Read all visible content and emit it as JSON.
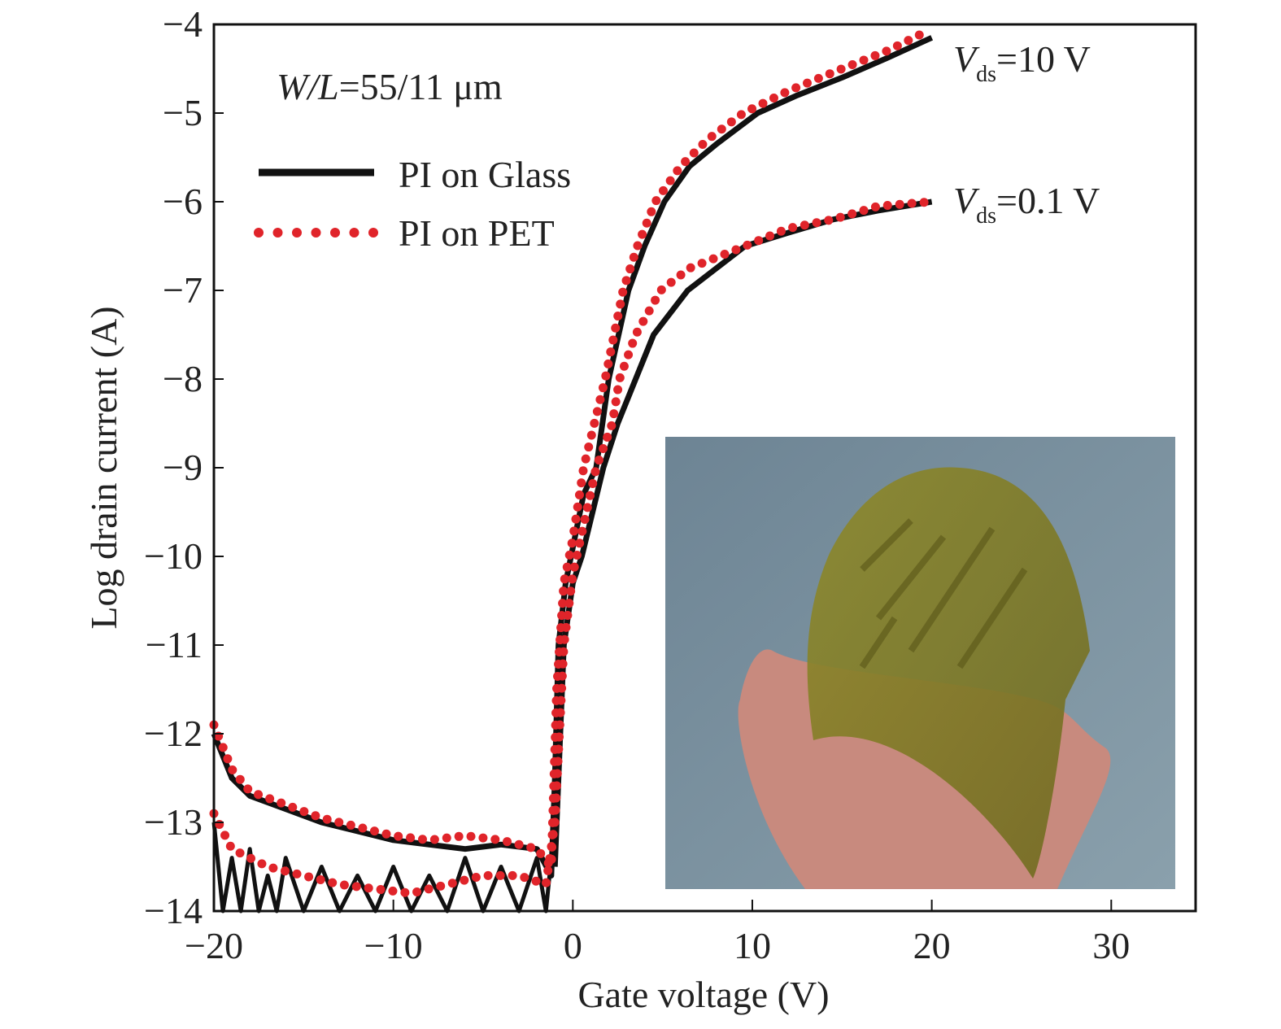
{
  "chart_data": {
    "type": "line",
    "xlabel": "Gate voltage (V)",
    "ylabel": "Log drain current (A)",
    "xlim": [
      -20,
      34.7
    ],
    "ylim": [
      -14,
      -4
    ],
    "xticks": [
      -20,
      -10,
      0,
      10,
      20,
      30
    ],
    "xtick_labels": [
      "−20",
      "−10",
      "0",
      "10",
      "20",
      "30"
    ],
    "yticks": [
      -4,
      -5,
      -6,
      -7,
      -8,
      -9,
      -10,
      -11,
      -12,
      -13,
      -14
    ],
    "ytick_labels": [
      "−4",
      "−5",
      "−6",
      "−7",
      "−8",
      "−9",
      "−10",
      "−11",
      "−12",
      "−13",
      "−14"
    ],
    "annotation_wl": {
      "italic": "W/L",
      "rest": "=55/11 μm"
    },
    "annotation_vds10": {
      "v": "V",
      "sub": "ds",
      "rest": "=10 V"
    },
    "annotation_vds01": {
      "v": "V",
      "sub": "ds",
      "rest": "=0.1 V"
    },
    "legend": {
      "placement": "top-left",
      "entries": [
        {
          "label": "PI on Glass",
          "color": "#111111",
          "style": "solid"
        },
        {
          "label": "PI on PET",
          "color": "#e0242a",
          "style": "dotted"
        }
      ]
    },
    "series": [
      {
        "name": "PI on Glass, Vds=10 V",
        "style": "solid",
        "color": "#111111",
        "points": [
          [
            -20,
            -12
          ],
          [
            -19,
            -12.5
          ],
          [
            -18,
            -12.7
          ],
          [
            -16,
            -12.85
          ],
          [
            -14,
            -13
          ],
          [
            -12,
            -13.1
          ],
          [
            -10,
            -13.2
          ],
          [
            -8,
            -13.25
          ],
          [
            -6,
            -13.3
          ],
          [
            -4,
            -13.25
          ],
          [
            -2,
            -13.3
          ],
          [
            -1.2,
            -13.6
          ],
          [
            -1,
            -12.5
          ],
          [
            -0.8,
            -11
          ],
          [
            -0.4,
            -10.3
          ],
          [
            0,
            -9.9
          ],
          [
            0.6,
            -9.3
          ],
          [
            1.3,
            -9
          ],
          [
            2,
            -8
          ],
          [
            3.1,
            -7
          ],
          [
            4,
            -6.5
          ],
          [
            5.1,
            -6
          ],
          [
            6.5,
            -5.6
          ],
          [
            8,
            -5.35
          ],
          [
            10.3,
            -5
          ],
          [
            12.5,
            -4.8
          ],
          [
            15,
            -4.6
          ],
          [
            17.5,
            -4.38
          ],
          [
            20,
            -4.15
          ]
        ]
      },
      {
        "name": "PI on Glass, Vds=0.1 V",
        "style": "solid",
        "color": "#111111",
        "points": [
          [
            -1,
            -13.5
          ],
          [
            -0.5,
            -11
          ],
          [
            0,
            -10.3
          ],
          [
            0.5,
            -10
          ],
          [
            1.7,
            -9
          ],
          [
            2.5,
            -8.5
          ],
          [
            3.5,
            -8
          ],
          [
            4.5,
            -7.5
          ],
          [
            6.4,
            -7
          ],
          [
            8,
            -6.75
          ],
          [
            9.6,
            -6.5
          ],
          [
            12,
            -6.35
          ],
          [
            14.5,
            -6.2
          ],
          [
            17,
            -6.1
          ],
          [
            20,
            -6.0
          ]
        ]
      },
      {
        "name": "PI on Glass, off-state noise",
        "style": "noise",
        "color": "#111111",
        "points": [
          [
            -20,
            -13
          ],
          [
            -19.5,
            -14
          ],
          [
            -19,
            -13.4
          ],
          [
            -18.5,
            -14
          ],
          [
            -18,
            -13.3
          ],
          [
            -17.5,
            -14
          ],
          [
            -17,
            -13.6
          ],
          [
            -16.5,
            -14
          ],
          [
            -16,
            -13.4
          ],
          [
            -15,
            -14
          ],
          [
            -14,
            -13.5
          ],
          [
            -13,
            -14
          ],
          [
            -12,
            -13.6
          ],
          [
            -11,
            -14
          ],
          [
            -10,
            -13.5
          ],
          [
            -9,
            -14
          ],
          [
            -8,
            -13.6
          ],
          [
            -7,
            -14
          ],
          [
            -6,
            -13.4
          ],
          [
            -5,
            -14
          ],
          [
            -4,
            -13.5
          ],
          [
            -3,
            -14
          ],
          [
            -2,
            -13.4
          ],
          [
            -1.5,
            -14
          ],
          [
            -1.2,
            -13.4
          ]
        ]
      },
      {
        "name": "PI on PET, Vds=10 V",
        "style": "dotted",
        "color": "#e0242a",
        "points": [
          [
            -20,
            -11.9
          ],
          [
            -19,
            -12.4
          ],
          [
            -18,
            -12.65
          ],
          [
            -16,
            -12.8
          ],
          [
            -14,
            -12.95
          ],
          [
            -12,
            -13.05
          ],
          [
            -10,
            -13.15
          ],
          [
            -8,
            -13.2
          ],
          [
            -6,
            -13.15
          ],
          [
            -4,
            -13.2
          ],
          [
            -2,
            -13.3
          ],
          [
            -1.2,
            -13.5
          ],
          [
            -0.9,
            -11.5
          ],
          [
            -0.5,
            -10.3
          ],
          [
            0,
            -9.8
          ],
          [
            0.6,
            -9
          ],
          [
            1.2,
            -8.5
          ],
          [
            1.8,
            -8
          ],
          [
            2.8,
            -7
          ],
          [
            3.6,
            -6.5
          ],
          [
            4.6,
            -6
          ],
          [
            6,
            -5.6
          ],
          [
            7.5,
            -5.3
          ],
          [
            9.5,
            -5
          ],
          [
            12,
            -4.75
          ],
          [
            15,
            -4.5
          ],
          [
            17.5,
            -4.3
          ],
          [
            19.5,
            -4.1
          ]
        ]
      },
      {
        "name": "PI on PET, Vds=0.1 V",
        "style": "dotted",
        "color": "#e0242a",
        "points": [
          [
            -20,
            -12.9
          ],
          [
            -19,
            -13.3
          ],
          [
            -17,
            -13.5
          ],
          [
            -15,
            -13.6
          ],
          [
            -13,
            -13.7
          ],
          [
            -11,
            -13.75
          ],
          [
            -9,
            -13.8
          ],
          [
            -7,
            -13.7
          ],
          [
            -5,
            -13.6
          ],
          [
            -3,
            -13.6
          ],
          [
            -1.5,
            -13.7
          ],
          [
            -1,
            -13
          ],
          [
            -0.5,
            -11
          ],
          [
            0,
            -10.2
          ],
          [
            1.3,
            -9
          ],
          [
            2.2,
            -8.5
          ],
          [
            2.6,
            -8
          ],
          [
            3.5,
            -7.5
          ],
          [
            4.9,
            -7
          ],
          [
            6.5,
            -6.75
          ],
          [
            9.6,
            -6.5
          ],
          [
            12,
            -6.3
          ],
          [
            14.5,
            -6.2
          ],
          [
            17,
            -6.05
          ],
          [
            20,
            -6.0
          ]
        ]
      }
    ]
  }
}
